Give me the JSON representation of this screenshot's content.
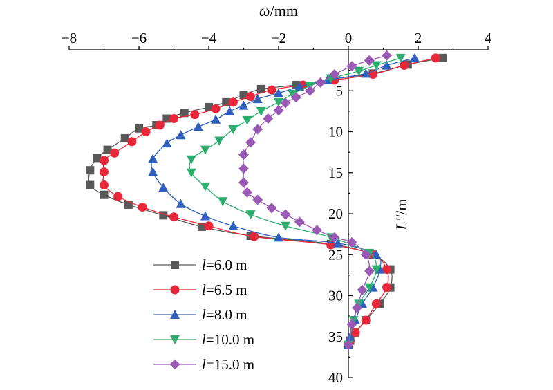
{
  "chart_data": {
    "type": "line",
    "x_axis": {
      "label_symbol": "ω",
      "label_unit": "/mm",
      "position": "top",
      "range": [
        -8,
        4
      ],
      "ticks": [
        "−8",
        "−6",
        "−4",
        "−2",
        "0",
        "2",
        "4"
      ],
      "tick_values": [
        -8,
        -6,
        -4,
        -2,
        0,
        2,
        4
      ]
    },
    "y_axis": {
      "label_symbol": "L''",
      "label_unit": "/m",
      "position": "at x = 0",
      "inverted": true,
      "range": [
        0,
        40
      ],
      "ticks": [
        "5",
        "10",
        "15",
        "20",
        "25",
        "30",
        "35",
        "40"
      ],
      "tick_values": [
        5,
        10,
        15,
        20,
        25,
        30,
        35,
        40
      ]
    },
    "grid": false,
    "legend": {
      "placement": "bottom-left",
      "symbol": "l",
      "separator": "="
    },
    "series": [
      {
        "name": "6.0 m",
        "color": "#595959",
        "marker": "square",
        "x": [
          2.7,
          1.7,
          0.7,
          -0.5,
          -1.5,
          -2.5,
          -3.0,
          -3.5,
          -4.0,
          -4.7,
          -5.2,
          -5.5,
          -6.0,
          -6.4,
          -6.9,
          -7.2,
          -7.4,
          -7.4,
          -7.0,
          -6.3,
          -5.3,
          -4.2,
          -2.8,
          -0.5,
          0.7,
          1.2,
          1.2,
          0.9,
          0.5,
          0.2,
          0.05,
          0.0
        ],
        "y": [
          1.0,
          1.8,
          2.9,
          3.6,
          4.3,
          4.8,
          5.5,
          6.4,
          7.0,
          7.7,
          8.4,
          9.2,
          9.6,
          10.8,
          12.2,
          13.2,
          14.7,
          16.5,
          17.7,
          18.9,
          20.2,
          21.6,
          22.7,
          23.7,
          25.0,
          26.8,
          29.0,
          31.0,
          33.0,
          34.5,
          35.5,
          36.0
        ]
      },
      {
        "name": "6.5 m",
        "color": "#e8283a",
        "marker": "circle",
        "x": [
          2.5,
          1.6,
          0.7,
          -0.4,
          -1.3,
          -2.2,
          -2.8,
          -3.3,
          -3.8,
          -4.4,
          -5.0,
          -5.4,
          -5.8,
          -6.2,
          -6.7,
          -7.0,
          -7.0,
          -7.0,
          -6.6,
          -5.9,
          -5.0,
          -4.0,
          -2.7,
          -0.5,
          0.7,
          1.1,
          1.1,
          0.8,
          0.5,
          0.2,
          0.05,
          0.0
        ],
        "y": [
          1.0,
          1.9,
          3.0,
          3.7,
          4.3,
          4.9,
          5.7,
          6.4,
          7.2,
          7.9,
          8.4,
          9.2,
          10.0,
          11.2,
          12.6,
          13.5,
          14.9,
          16.5,
          17.9,
          19.2,
          20.4,
          21.5,
          22.8,
          23.8,
          25.0,
          26.8,
          29.0,
          31.0,
          33.0,
          34.5,
          35.5,
          36.0
        ]
      },
      {
        "name": "8.0 m",
        "color": "#2e5fbf",
        "marker": "triangle-up",
        "x": [
          1.9,
          1.1,
          0.5,
          -0.6,
          -1.4,
          -2.0,
          -2.6,
          -3.0,
          -3.4,
          -3.8,
          -4.3,
          -4.8,
          -5.2,
          -5.6,
          -5.6,
          -5.3,
          -4.8,
          -4.1,
          -3.3,
          -2.0,
          -0.3,
          0.8,
          0.9,
          0.7,
          0.4,
          0.2,
          0.05,
          0.0
        ],
        "y": [
          1.0,
          1.9,
          2.9,
          3.7,
          4.5,
          5.3,
          6.0,
          6.8,
          7.5,
          8.5,
          9.4,
          10.4,
          11.4,
          13.3,
          14.9,
          16.8,
          18.8,
          20.3,
          21.5,
          22.9,
          23.6,
          25.0,
          26.8,
          29.0,
          31.0,
          33.0,
          35.0,
          36.0
        ]
      },
      {
        "name": "10.0 m",
        "color": "#2eae6e",
        "marker": "triangle-down",
        "x": [
          1.5,
          0.8,
          0.3,
          -0.5,
          -1.1,
          -1.6,
          -2.0,
          -2.5,
          -2.9,
          -3.3,
          -3.7,
          -4.1,
          -4.5,
          -4.5,
          -4.1,
          -3.6,
          -2.8,
          -1.8,
          -0.5,
          0.6,
          0.8,
          0.6,
          0.3,
          0.15,
          0.0
        ],
        "y": [
          1.0,
          1.9,
          2.6,
          3.5,
          4.4,
          5.4,
          6.4,
          7.5,
          8.6,
          9.7,
          11.1,
          12.2,
          13.4,
          15.0,
          16.7,
          18.5,
          20.1,
          21.5,
          22.9,
          24.8,
          26.8,
          29.0,
          31.0,
          33.0,
          36.0
        ]
      },
      {
        "name": "15.0 m",
        "color": "#9b59b6",
        "marker": "diamond",
        "x": [
          1.1,
          0.6,
          0.1,
          -0.4,
          -0.8,
          -1.1,
          -1.5,
          -1.8,
          -2.0,
          -2.3,
          -2.6,
          -2.8,
          -3.0,
          -3.0,
          -3.0,
          -2.9,
          -2.6,
          -2.2,
          -1.8,
          -1.4,
          -0.9,
          -0.4,
          0.1,
          0.5,
          0.6,
          0.4,
          0.25,
          0.1,
          0.0
        ],
        "y": [
          0.7,
          1.3,
          2.0,
          3.0,
          4.0,
          5.0,
          5.8,
          6.5,
          7.4,
          8.4,
          9.7,
          11.3,
          12.8,
          14.5,
          16.2,
          17.4,
          18.3,
          19.3,
          20.1,
          21.0,
          22.0,
          22.9,
          23.5,
          25.0,
          27.0,
          29.3,
          31.5,
          33.5,
          36.0
        ]
      }
    ]
  }
}
